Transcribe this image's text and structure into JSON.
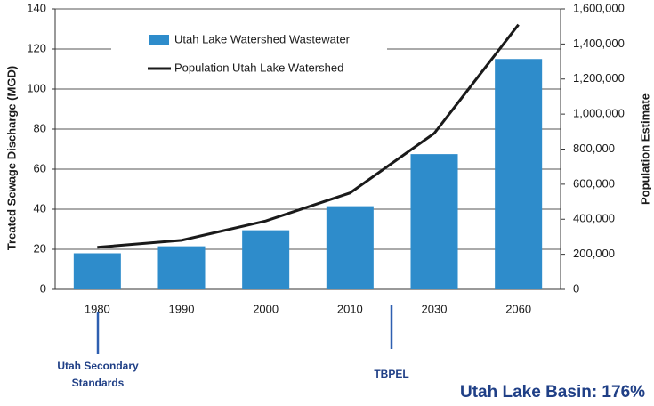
{
  "chart_data": {
    "type": "bar-line",
    "categories": [
      "1980",
      "1990",
      "2000",
      "2010",
      "2030",
      "2060"
    ],
    "series": [
      {
        "name": "Utah Lake Watershed Wastewater",
        "type": "bar",
        "color": "#2e8ccb",
        "axis": "y",
        "values": [
          18,
          21.5,
          29.5,
          41.5,
          67.5,
          115
        ]
      },
      {
        "name": "Population Utah Lake Watershed",
        "type": "line",
        "color": "#1a1a1a",
        "axis": "y2",
        "values": [
          240000,
          280000,
          390000,
          550000,
          890000,
          1510000
        ]
      }
    ],
    "ylabel": "Treated Sewage Discharge (MGD)",
    "y2label": "Population Estimate",
    "ylim": [
      0,
      140
    ],
    "yticks": [
      0,
      20,
      40,
      60,
      80,
      100,
      120,
      140
    ],
    "y2lim": [
      0,
      1600000
    ],
    "y2ticks": [
      0,
      {
        "value": 200000,
        "label": "200,000"
      },
      {
        "value": 400000,
        "label": "400,000"
      },
      {
        "value": 600000,
        "label": "600,000"
      },
      {
        "value": 800000,
        "label": "800,000"
      },
      {
        "value": 1000000,
        "label": "1,000,000"
      },
      {
        "value": 1200000,
        "label": "1,200,000"
      },
      {
        "value": 1400000,
        "label": "1,400,000"
      },
      {
        "value": 1600000,
        "label": "1,600,000"
      }
    ],
    "grid": true,
    "legend": "upper-left",
    "annotations": [
      "Utah Secondary Standards",
      "TBPEL",
      "Utah Lake Basin: 176%"
    ]
  }
}
